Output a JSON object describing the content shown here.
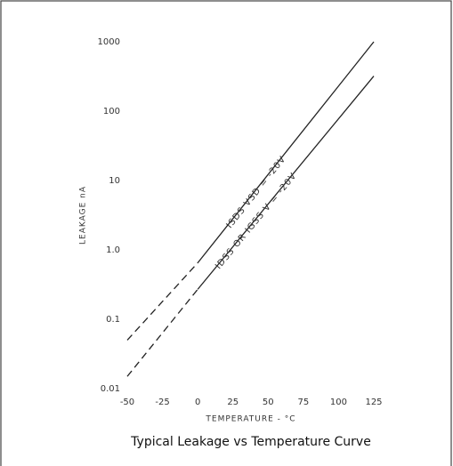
{
  "chart_data": {
    "type": "line",
    "title": "Typical Leakage vs Temperature Curve",
    "xlabel": "TEMPERATURE - °C",
    "ylabel": "LEAKAGE nA",
    "xlim": [
      -50,
      125
    ],
    "xticks": [
      -50,
      -25,
      0,
      25,
      50,
      75,
      100,
      125
    ],
    "ylim": [
      0.01,
      1000
    ],
    "yticks": [
      0.01,
      0.1,
      {
        "value": 1,
        "label": "1.0"
      },
      10,
      100,
      1000
    ],
    "log_y": true,
    "grid": false,
    "series": [
      {
        "name": "ISDS VSD = -20V",
        "color": "#222222",
        "x": [
          -50,
          0,
          125
        ],
        "values": [
          0.05,
          0.65,
          1000
        ],
        "segment_styles": [
          "dashed",
          "solid"
        ]
      },
      {
        "name": "IDSS OR IGSS V = -20V",
        "color": "#222222",
        "x": [
          -50,
          0,
          125
        ],
        "values": [
          0.015,
          0.27,
          320
        ],
        "segment_styles": [
          "dashed",
          "solid"
        ]
      }
    ]
  }
}
